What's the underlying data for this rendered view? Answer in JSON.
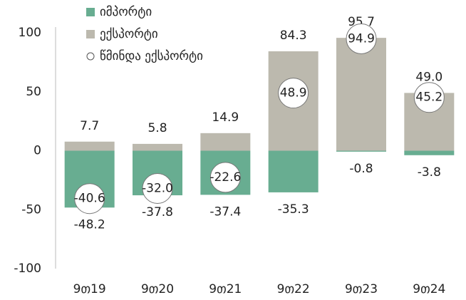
{
  "chart_data": {
    "type": "bar",
    "categories": [
      "9თ19",
      "9თ20",
      "9თ21",
      "9თ22",
      "9თ23",
      "9თ24"
    ],
    "series": [
      {
        "name": "იმპორტი",
        "color": "#68ad91",
        "mark": "bar",
        "values": [
          -48.2,
          -37.8,
          -37.4,
          -35.3,
          -0.8,
          -3.8
        ],
        "value_labels": [
          "-48.2",
          "-37.8",
          "-37.4",
          "-35.3",
          "-0.8",
          "-3.8"
        ]
      },
      {
        "name": "ექსპორტი",
        "color": "#bcb9ae",
        "mark": "bar",
        "values": [
          7.7,
          5.8,
          14.9,
          84.3,
          95.7,
          49.0
        ],
        "value_labels": [
          "7.7",
          "5.8",
          "14.9",
          "84.3",
          "95.7",
          "49.0"
        ]
      },
      {
        "name": "წმინდა ექსპორტი",
        "color": "#ffffff",
        "mark": "circle",
        "values": [
          -40.6,
          -32.0,
          -22.6,
          48.9,
          94.9,
          45.2
        ],
        "value_labels": [
          "-40.6",
          "-32.0",
          "-22.6",
          "48.9",
          "94.9",
          "45.2"
        ]
      }
    ],
    "ylim": [
      -100,
      100
    ],
    "yticks": [
      -100,
      -50,
      0,
      50,
      100
    ],
    "grid": false
  }
}
